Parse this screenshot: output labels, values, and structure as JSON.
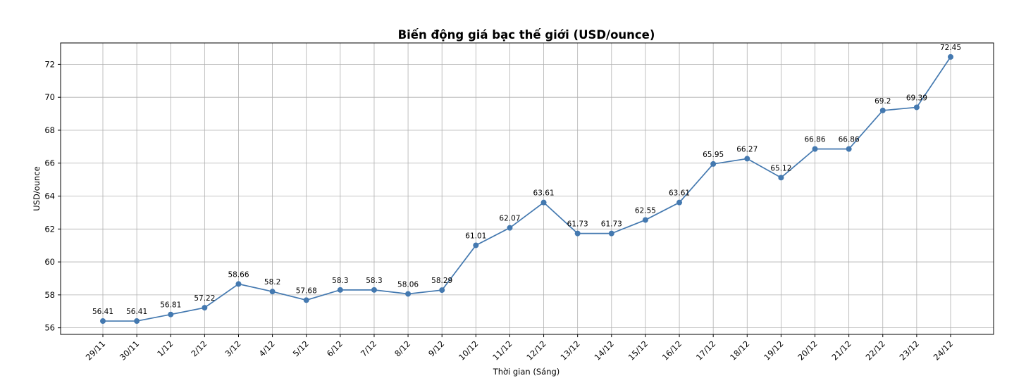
{
  "chart_data": {
    "type": "line",
    "title": "Biến động giá bạc thế giới (USD/ounce)",
    "xlabel": "Thời gian (Sáng)",
    "ylabel": "USD/ounce",
    "categories": [
      "29/11",
      "30/11",
      "1/12",
      "2/12",
      "3/12",
      "4/12",
      "5/12",
      "6/12",
      "7/12",
      "8/12",
      "9/12",
      "10/12",
      "11/12",
      "12/12",
      "13/12",
      "14/12",
      "15/12",
      "16/12",
      "17/12",
      "18/12",
      "19/12",
      "20/12",
      "21/12",
      "22/12",
      "23/12",
      "24/12"
    ],
    "values": [
      56.41,
      56.41,
      56.81,
      57.22,
      58.66,
      58.2,
      57.68,
      58.3,
      58.3,
      58.06,
      58.29,
      61.01,
      62.07,
      63.61,
      61.73,
      61.73,
      62.55,
      63.61,
      65.95,
      66.27,
      65.12,
      66.86,
      66.86,
      69.2,
      69.39,
      72.45
    ],
    "data_labels": [
      "56.41",
      "56.41",
      "56.81",
      "57.22",
      "58.66",
      "58.2",
      "57.68",
      "58.3",
      "58.3",
      "58.06",
      "58.29",
      "61.01",
      "62.07",
      "63.61",
      "61.73",
      "61.73",
      "62.55",
      "63.61",
      "65.95",
      "66.27",
      "65.12",
      "66.86",
      "66.86",
      "69.2",
      "69.39",
      "72.45"
    ],
    "yticks": [
      "56",
      "58",
      "60",
      "62",
      "64",
      "66",
      "68",
      "70",
      "72"
    ],
    "ylim": [
      55.6,
      73.3
    ],
    "grid": true,
    "marker": "circle",
    "colors": {
      "line": "#4479b0",
      "grid": "#b0b0b0"
    }
  }
}
